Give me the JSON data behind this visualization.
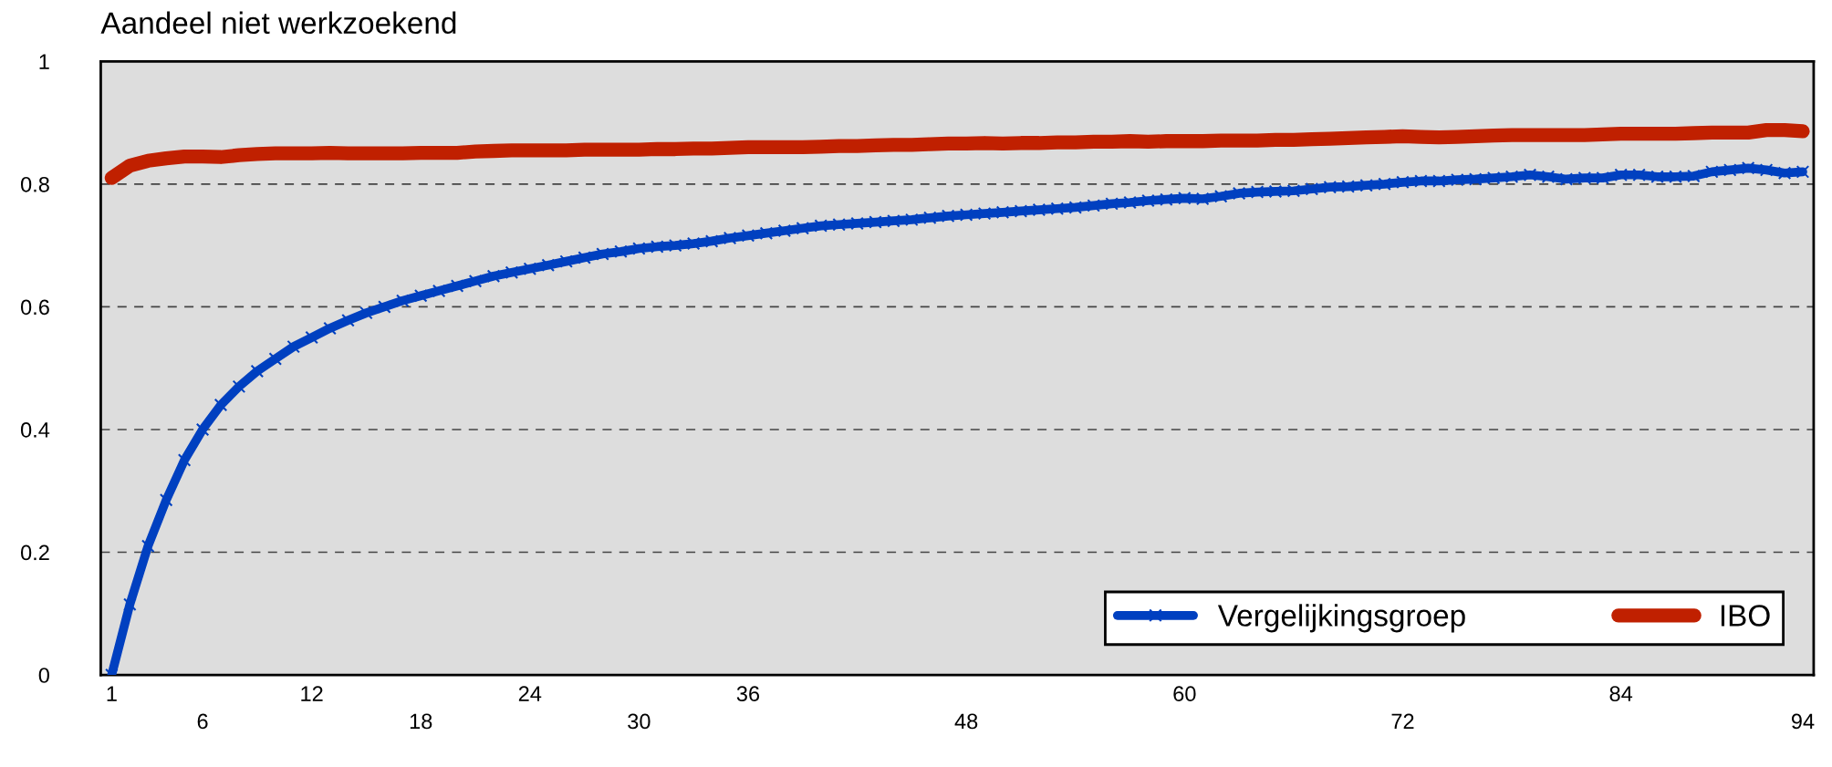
{
  "chart_data": {
    "type": "line",
    "title": "Aandeel niet werkzoekend",
    "categories": [
      "1",
      null,
      null,
      null,
      null,
      "6",
      null,
      null,
      null,
      null,
      null,
      "12",
      null,
      null,
      null,
      null,
      null,
      "18",
      null,
      null,
      null,
      null,
      null,
      "24",
      null,
      null,
      null,
      null,
      null,
      "30",
      null,
      null,
      null,
      null,
      null,
      "36",
      null,
      null,
      null,
      null,
      null,
      null,
      null,
      null,
      null,
      null,
      null,
      "48",
      null,
      null,
      null,
      null,
      null,
      null,
      null,
      null,
      null,
      null,
      null,
      "60",
      null,
      null,
      null,
      null,
      null,
      null,
      null,
      null,
      null,
      null,
      null,
      "72",
      null,
      null,
      null,
      null,
      null,
      null,
      null,
      null,
      null,
      null,
      null,
      "84",
      null,
      null,
      null,
      null,
      null,
      null,
      null,
      null,
      null,
      "94"
    ],
    "series": [
      {
        "name": "Vergelijkingsgroep",
        "color": "#0040c0",
        "marker": "cross",
        "values": [
          0,
          0.115,
          0.21,
          0.285,
          0.35,
          0.4,
          0.44,
          0.47,
          0.495,
          0.515,
          0.535,
          0.55,
          0.565,
          0.578,
          0.59,
          0.6,
          0.61,
          0.618,
          0.626,
          0.634,
          0.642,
          0.65,
          0.656,
          0.662,
          0.668,
          0.674,
          0.68,
          0.686,
          0.69,
          0.695,
          0.698,
          0.7,
          0.703,
          0.707,
          0.712,
          0.716,
          0.72,
          0.724,
          0.728,
          0.732,
          0.734,
          0.736,
          0.738,
          0.74,
          0.742,
          0.745,
          0.748,
          0.75,
          0.752,
          0.754,
          0.756,
          0.758,
          0.76,
          0.762,
          0.765,
          0.768,
          0.77,
          0.773,
          0.775,
          0.777,
          0.776,
          0.78,
          0.785,
          0.787,
          0.788,
          0.789,
          0.792,
          0.795,
          0.796,
          0.798,
          0.8,
          0.803,
          0.805,
          0.805,
          0.807,
          0.808,
          0.81,
          0.812,
          0.815,
          0.812,
          0.808,
          0.81,
          0.81,
          0.815,
          0.815,
          0.812,
          0.812,
          0.813,
          0.82,
          0.823,
          0.826,
          0.823,
          0.818,
          0.82
        ]
      },
      {
        "name": "IBO",
        "color": "#c02000",
        "marker": "none",
        "values": [
          0.81,
          0.83,
          0.838,
          0.842,
          0.845,
          0.845,
          0.844,
          0.847,
          0.849,
          0.85,
          0.85,
          0.85,
          0.851,
          0.85,
          0.85,
          0.85,
          0.85,
          0.851,
          0.851,
          0.851,
          0.853,
          0.854,
          0.855,
          0.855,
          0.855,
          0.855,
          0.856,
          0.856,
          0.856,
          0.856,
          0.857,
          0.857,
          0.858,
          0.858,
          0.859,
          0.86,
          0.86,
          0.86,
          0.86,
          0.861,
          0.862,
          0.862,
          0.863,
          0.864,
          0.864,
          0.865,
          0.866,
          0.866,
          0.867,
          0.866,
          0.867,
          0.867,
          0.868,
          0.868,
          0.869,
          0.869,
          0.87,
          0.869,
          0.87,
          0.87,
          0.87,
          0.871,
          0.871,
          0.871,
          0.872,
          0.872,
          0.873,
          0.874,
          0.875,
          0.876,
          0.877,
          0.878,
          0.877,
          0.876,
          0.877,
          0.878,
          0.879,
          0.88,
          0.88,
          0.88,
          0.88,
          0.88,
          0.881,
          0.882,
          0.882,
          0.882,
          0.882,
          0.883,
          0.884,
          0.884,
          0.884,
          0.888,
          0.888,
          0.886
        ]
      }
    ],
    "ylim": [
      0,
      1
    ],
    "yticks": [
      0,
      0.2,
      0.4,
      0.6,
      0.8,
      1
    ],
    "grid": "y",
    "legend": "bottom right",
    "line_style": "solid"
  }
}
